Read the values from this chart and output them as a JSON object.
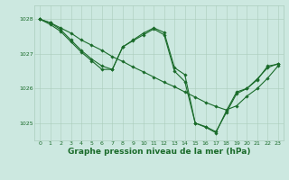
{
  "bg_color": "#cce8e0",
  "grid_color": "#aaccbb",
  "line_color": "#1a6b2a",
  "marker_color": "#1a6b2a",
  "xlabel": "Graphe pression niveau de la mer (hPa)",
  "xlabel_fontsize": 6.5,
  "xlim": [
    -0.5,
    23.5
  ],
  "ylim": [
    1024.5,
    1028.4
  ],
  "yticks": [
    1025,
    1026,
    1027,
    1028
  ],
  "xticks": [
    0,
    1,
    2,
    3,
    4,
    5,
    6,
    7,
    8,
    9,
    10,
    11,
    12,
    13,
    14,
    15,
    16,
    17,
    18,
    19,
    20,
    21,
    22,
    23
  ],
  "series": [
    [
      1028.0,
      1027.9,
      1027.75,
      1027.6,
      1027.4,
      1027.25,
      1027.1,
      1026.92,
      1026.78,
      1026.62,
      1026.48,
      1026.33,
      1026.18,
      1026.05,
      1025.9,
      1025.75,
      1025.6,
      1025.48,
      1025.38,
      1025.5,
      1025.78,
      1026.0,
      1026.3,
      1026.65
    ],
    [
      1028.0,
      1027.9,
      1027.7,
      1027.4,
      1027.1,
      1026.85,
      1026.65,
      1026.55,
      1027.2,
      1027.38,
      1027.55,
      1027.72,
      1027.55,
      1026.5,
      1026.2,
      1025.0,
      1024.9,
      1024.75,
      1025.3,
      1025.85,
      1026.0,
      1026.25,
      1026.65,
      1026.7
    ],
    [
      1028.0,
      1027.85,
      1027.65,
      1027.35,
      1027.05,
      1026.8,
      1026.55,
      1026.55,
      1027.2,
      1027.4,
      1027.6,
      1027.75,
      1027.62,
      1026.6,
      1026.4,
      1025.0,
      1024.88,
      1024.72,
      1025.35,
      1025.9,
      1026.0,
      1026.28,
      1026.6,
      1026.72
    ]
  ]
}
